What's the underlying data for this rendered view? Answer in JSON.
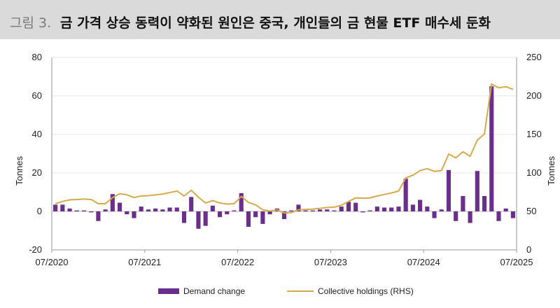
{
  "header": {
    "figure_label": "그림 3.",
    "title": "금 가격 상승 동력이 약화된 원인은 중국, 개인들의 금 현물 ETF 매수세 둔화"
  },
  "colors": {
    "bar": "#6b2e8a",
    "line": "#d6aa4c",
    "axis": "#9a9a9a",
    "grid": "#e6e6e6",
    "header_bg": "#dadada"
  },
  "chart_data": {
    "type": "bar",
    "title": "",
    "xlabel": "",
    "ylabel": "Tonnes",
    "y2label": "Tonnes",
    "ylim": [
      -20,
      80
    ],
    "y2lim": [
      0,
      250
    ],
    "yticks": [
      -20,
      0,
      20,
      40,
      60,
      80
    ],
    "y2ticks": [
      0,
      50,
      100,
      150,
      200,
      250
    ],
    "grid": true,
    "legend_position": "bottom",
    "x_tick_labels": [
      "07/2020",
      "07/2021",
      "07/2022",
      "07/2023",
      "07/2024",
      "07/2025"
    ],
    "series": [
      {
        "name": "Demand change",
        "type": "bar",
        "axis": "left",
        "values": [
          3.5,
          3.5,
          1.5,
          0.5,
          0.5,
          -0.5,
          -5,
          1,
          9,
          4.5,
          -1.5,
          -3.5,
          2.5,
          1,
          1.5,
          1,
          2,
          2,
          -6,
          7.5,
          -9,
          -7.5,
          3,
          -3,
          -1.5,
          0.5,
          9.5,
          -8,
          -3,
          -6.5,
          -1.5,
          1.5,
          -4,
          0.5,
          3.5,
          0.5,
          0.5,
          1,
          1,
          0.5,
          2.5,
          5,
          4.5,
          -0.5,
          0.5,
          2.5,
          2,
          2,
          2.5,
          17,
          3.5,
          6,
          2.5,
          -3.5,
          1,
          21.5,
          -5,
          8,
          -6,
          21,
          8,
          65,
          -5,
          1.5,
          -3.5
        ]
      },
      {
        "name": "Collective holdings (RHS)",
        "type": "line",
        "axis": "right",
        "values": [
          60,
          63,
          65,
          65.5,
          66,
          65.5,
          60,
          60,
          68,
          73,
          71.5,
          68,
          70,
          70.5,
          71.5,
          72.5,
          74.5,
          76.5,
          70,
          77.5,
          68.5,
          61,
          64,
          61,
          59.5,
          60,
          69.5,
          61.5,
          58.5,
          52,
          50.5,
          52,
          48,
          48.5,
          52,
          52.5,
          53,
          54,
          55,
          55.5,
          58,
          63,
          67.5,
          67,
          67.5,
          70,
          72,
          74,
          76.5,
          93.5,
          97,
          103,
          105.5,
          102,
          103,
          124.5,
          119.5,
          127.5,
          121.5,
          142.5,
          150.5,
          215.5,
          210.5,
          212,
          208.5
        ]
      }
    ]
  }
}
